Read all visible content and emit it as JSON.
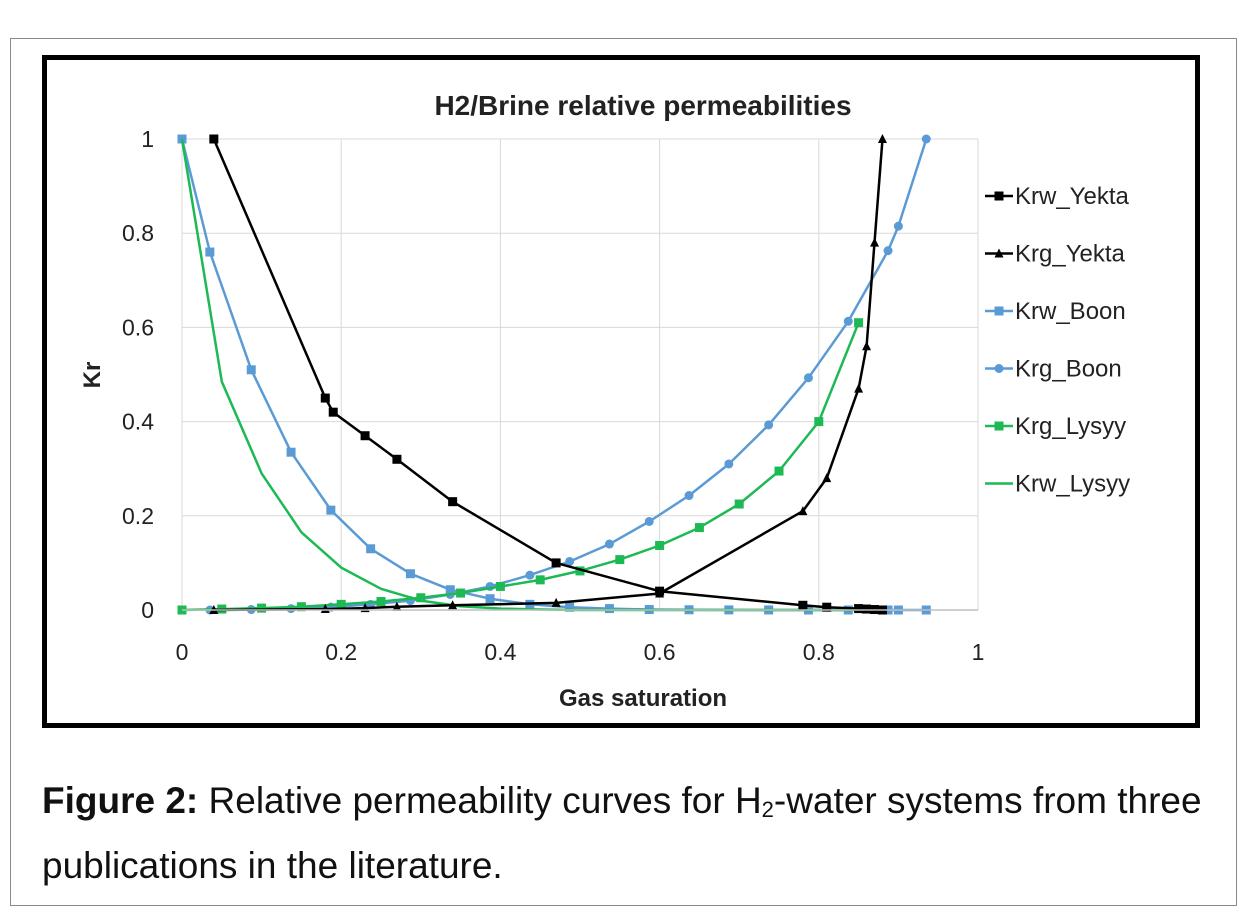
{
  "caption": {
    "label": "Figure 2:",
    "text_before_sub": "Relative permeability curves for H",
    "subscript": "2",
    "text_after_sub": "-water systems from three publications in the literature."
  },
  "chart_data": {
    "type": "line",
    "title": "H2/Brine relative permeabilities",
    "xlabel": "Gas saturation",
    "ylabel": "Kr",
    "xlim": [
      0,
      1
    ],
    "ylim": [
      0,
      1
    ],
    "xticks": [
      0,
      0.2,
      0.4,
      0.6,
      0.8,
      1
    ],
    "xtick_labels": [
      "0",
      "0.2",
      "0.4",
      "0.6",
      "0.8",
      "1"
    ],
    "yticks": [
      0,
      0.2,
      0.4,
      0.6,
      0.8,
      1
    ],
    "ytick_labels": [
      "0",
      "0.2",
      "0.4",
      "0.6",
      "0.8",
      "1"
    ],
    "grid": true,
    "legend_position": "right",
    "series": [
      {
        "name": "Krw_Yekta",
        "color": "#000000",
        "marker": "square",
        "x": [
          0.04,
          0.18,
          0.19,
          0.23,
          0.27,
          0.34,
          0.47,
          0.6,
          0.78,
          0.81,
          0.85,
          0.86,
          0.87,
          0.88
        ],
        "y": [
          1.0,
          0.45,
          0.42,
          0.37,
          0.32,
          0.23,
          0.1,
          0.04,
          0.01,
          0.006,
          0.003,
          0.002,
          0.001,
          0.0
        ]
      },
      {
        "name": "Krg_Yekta",
        "color": "#000000",
        "marker": "triangle",
        "x": [
          0.04,
          0.18,
          0.23,
          0.27,
          0.34,
          0.47,
          0.6,
          0.78,
          0.81,
          0.85,
          0.86,
          0.87,
          0.88
        ],
        "y": [
          0.0,
          0.002,
          0.004,
          0.007,
          0.01,
          0.015,
          0.035,
          0.21,
          0.28,
          0.47,
          0.56,
          0.78,
          1.0
        ]
      },
      {
        "name": "Krw_Boon",
        "color": "#5b9bd5",
        "marker": "square",
        "x": [
          0.0,
          0.035,
          0.087,
          0.137,
          0.187,
          0.237,
          0.287,
          0.337,
          0.387,
          0.437,
          0.487,
          0.537,
          0.587,
          0.637,
          0.687,
          0.737,
          0.787,
          0.837,
          0.887,
          0.9,
          0.935
        ],
        "y": [
          1.0,
          0.76,
          0.51,
          0.335,
          0.212,
          0.13,
          0.077,
          0.043,
          0.024,
          0.012,
          0.006,
          0.003,
          0.001,
          0.0005,
          0.0002,
          0.0001,
          0.0,
          0.0,
          0.0,
          0.0,
          0.0
        ]
      },
      {
        "name": "Krg_Boon",
        "color": "#5b9bd5",
        "marker": "circle",
        "x": [
          0.035,
          0.087,
          0.137,
          0.187,
          0.237,
          0.287,
          0.337,
          0.387,
          0.437,
          0.487,
          0.537,
          0.587,
          0.637,
          0.687,
          0.737,
          0.787,
          0.837,
          0.887,
          0.9,
          0.935
        ],
        "y": [
          0.0,
          0.001,
          0.003,
          0.006,
          0.012,
          0.02,
          0.033,
          0.05,
          0.074,
          0.103,
          0.14,
          0.188,
          0.243,
          0.31,
          0.393,
          0.493,
          0.613,
          0.763,
          0.815,
          1.0
        ]
      },
      {
        "name": "Krg_Lysyy",
        "color": "#1db954",
        "marker": "square",
        "x": [
          0.0,
          0.05,
          0.1,
          0.15,
          0.2,
          0.25,
          0.3,
          0.35,
          0.4,
          0.45,
          0.5,
          0.55,
          0.6,
          0.65,
          0.7,
          0.75,
          0.8,
          0.85
        ],
        "y": [
          0.0,
          0.002,
          0.004,
          0.007,
          0.012,
          0.018,
          0.026,
          0.036,
          0.05,
          0.064,
          0.083,
          0.107,
          0.137,
          0.175,
          0.225,
          0.295,
          0.4,
          0.61
        ]
      },
      {
        "name": "Krw_Lysyy",
        "color": "#1db954",
        "marker": "none",
        "x": [
          0.0,
          0.05,
          0.1,
          0.15,
          0.2,
          0.25,
          0.3,
          0.35,
          0.4,
          0.45,
          0.5,
          0.55,
          0.6,
          0.65,
          0.7,
          0.75,
          0.8,
          0.85
        ],
        "y": [
          1.0,
          0.485,
          0.29,
          0.165,
          0.09,
          0.045,
          0.02,
          0.008,
          0.003,
          0.001,
          0.0,
          0.0,
          0.0,
          0.0,
          0.0,
          0.0,
          0.0,
          0.0
        ]
      }
    ]
  }
}
